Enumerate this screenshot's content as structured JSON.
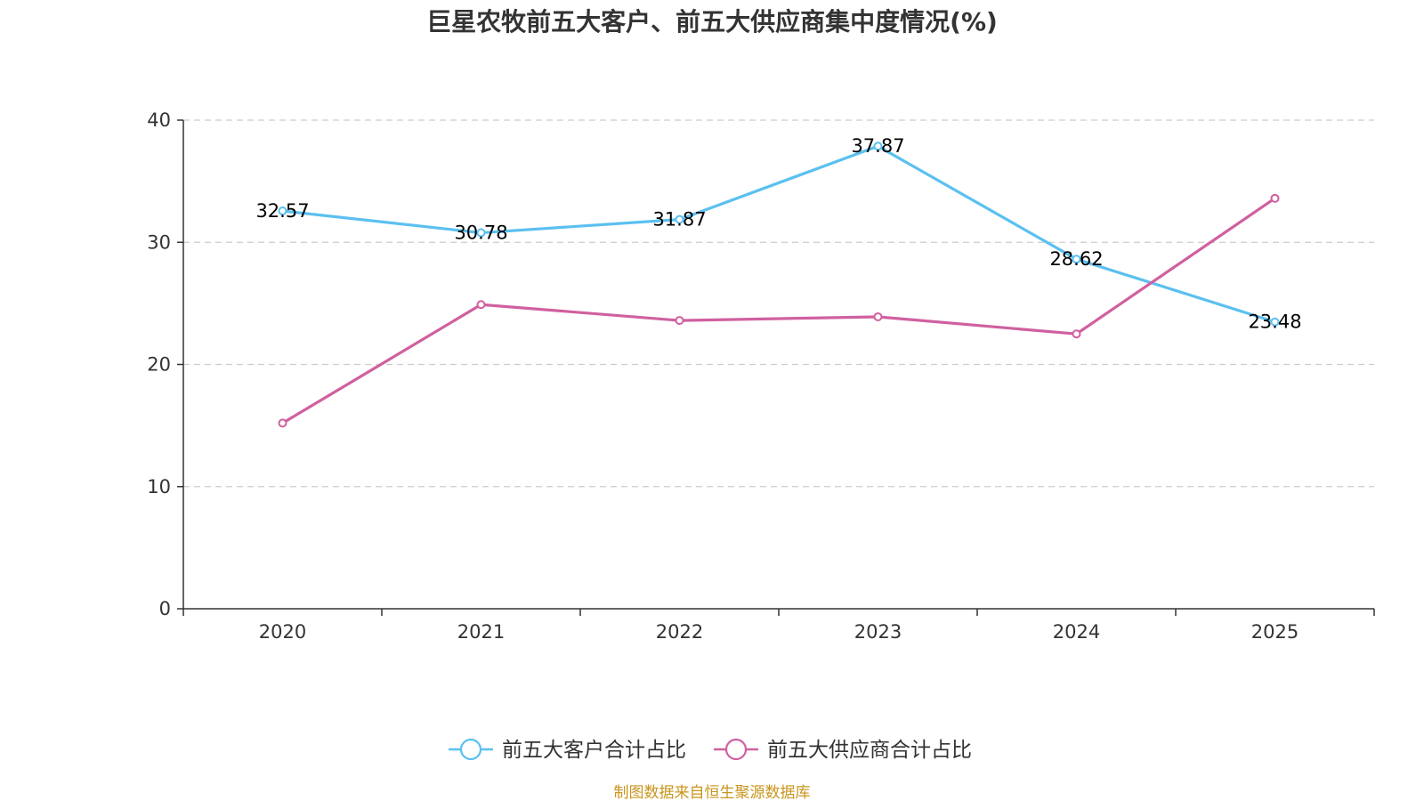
{
  "chart_data": {
    "type": "line",
    "title": "巨星农牧前五大客户、前五大供应商集中度情况(%)",
    "categories": [
      "2020",
      "2021",
      "2022",
      "2023",
      "2024",
      "2025"
    ],
    "ylim": [
      0,
      40
    ],
    "yticks": [
      0,
      10,
      20,
      30,
      40
    ],
    "grid": true,
    "legend_position": "bottom-center",
    "series": [
      {
        "name": "前五大客户合计占比",
        "color": "#5bc0f0",
        "values": [
          32.57,
          30.78,
          31.87,
          37.87,
          28.62,
          23.48
        ],
        "labels": [
          "32.57",
          "30.78",
          "31.87",
          "37.87",
          "28.62",
          "23.48"
        ]
      },
      {
        "name": "前五大供应商合计占比",
        "color": "#d0609f",
        "values": [
          15.2,
          24.9,
          23.6,
          23.9,
          22.5,
          33.6
        ]
      }
    ],
    "source": "制图数据来自恒生聚源数据库",
    "source_color": "#c8951c"
  }
}
